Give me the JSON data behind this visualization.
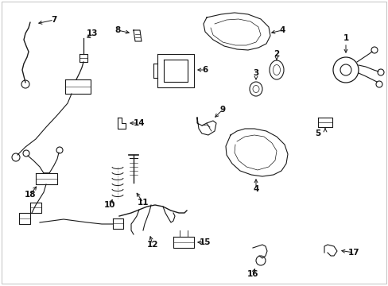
{
  "bg_color": "#ffffff",
  "line_color": "#1a1a1a",
  "text_color": "#111111",
  "label_fontsize": 7.5,
  "figsize": [
    4.89,
    3.6
  ],
  "dpi": 100
}
